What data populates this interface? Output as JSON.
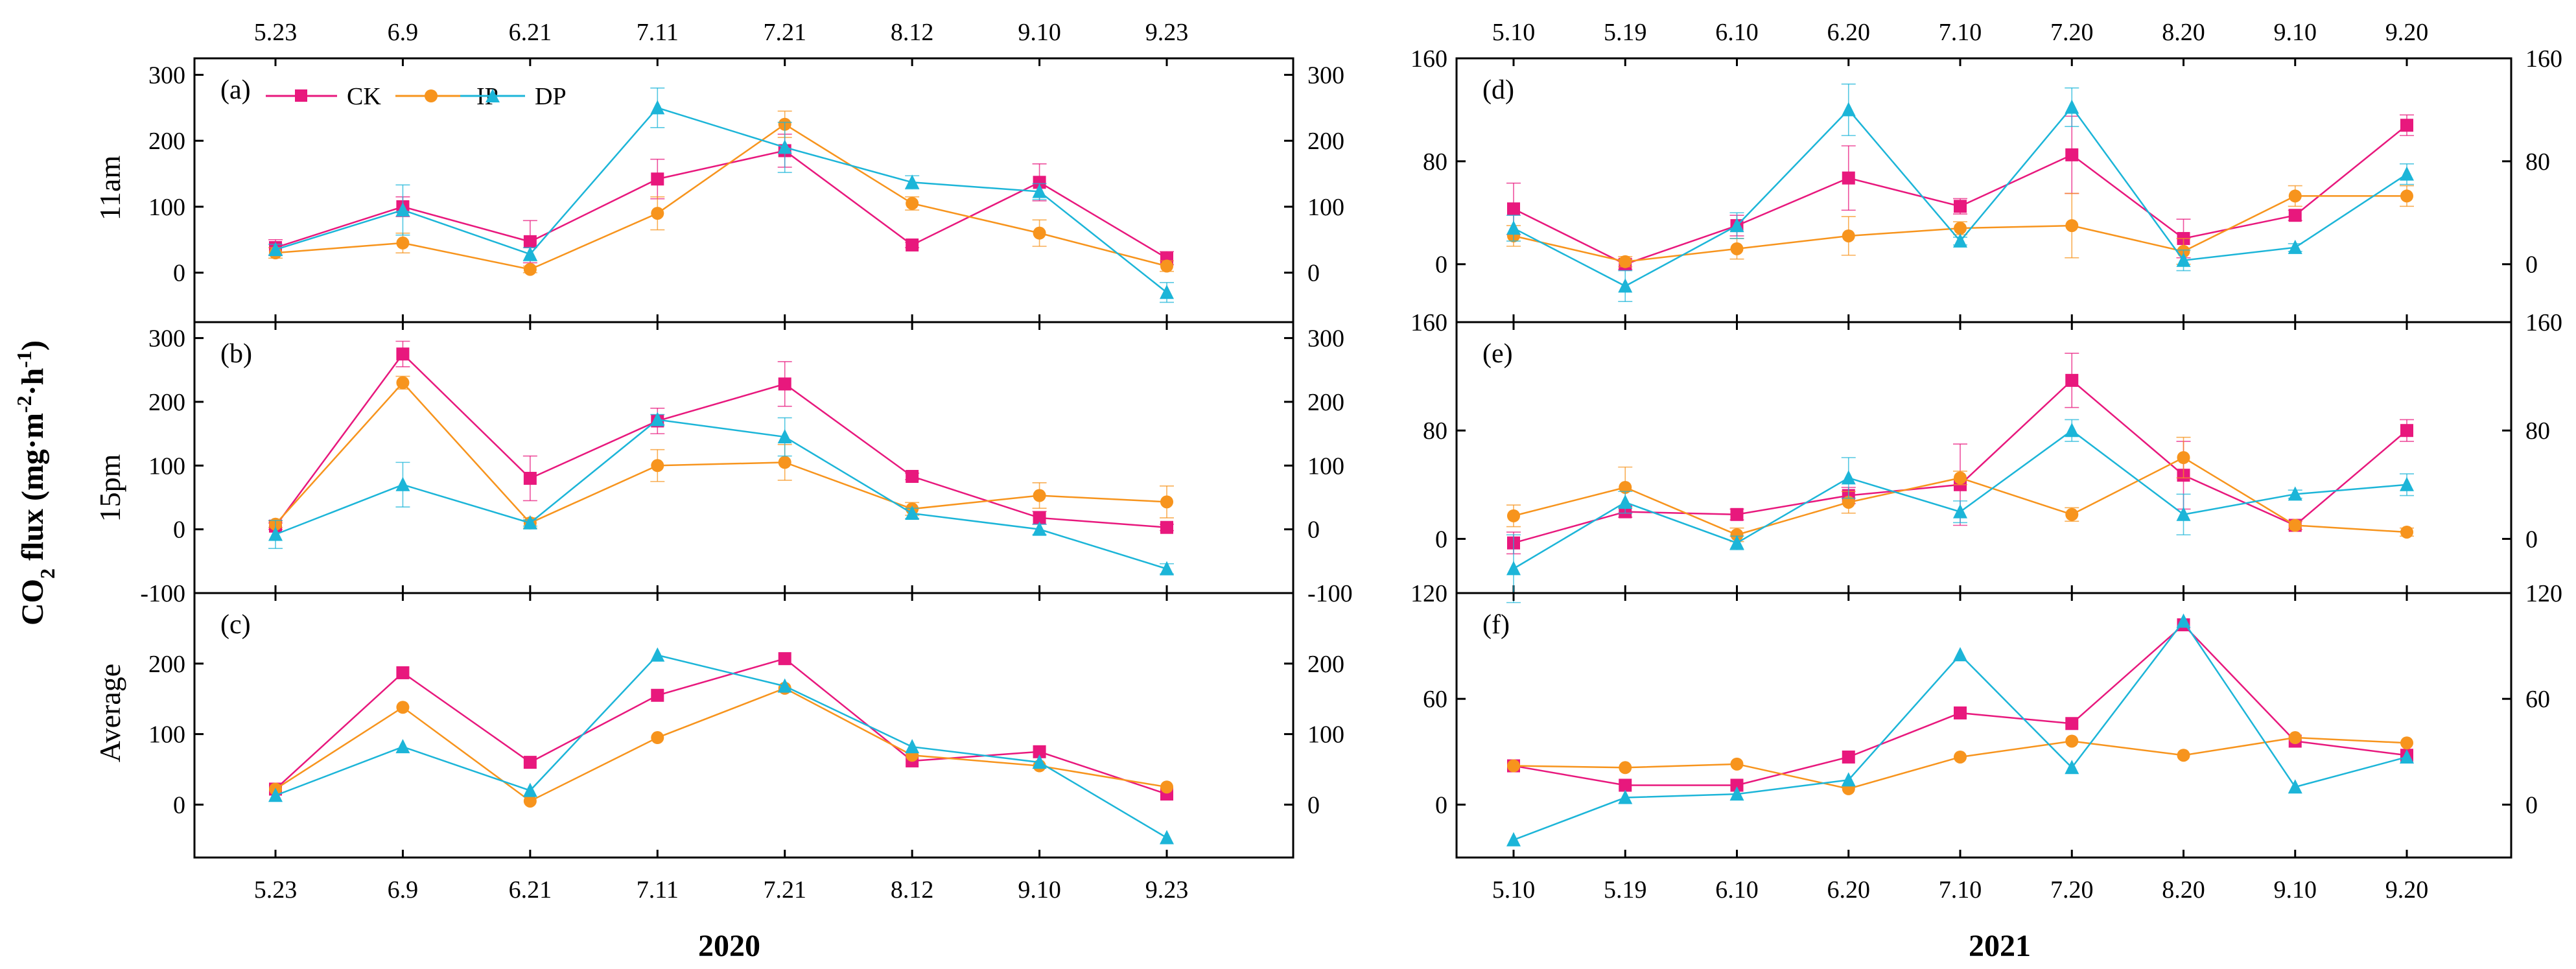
{
  "figure": {
    "ylabel_main": "CO",
    "ylabel_sub2": "2",
    "ylabel_flux": " flux (mg·m",
    "ylabel_sup1": "-2",
    "ylabel_mid": "·h",
    "ylabel_sup2": "-1",
    "ylabel_close": ")",
    "year_left": "2020",
    "year_right": "2021",
    "row_labels": [
      "11am",
      "15pm",
      "Average"
    ]
  },
  "colors": {
    "CK": "#e8187d",
    "IP": "#f7941d",
    "DP": "#1cb5d8"
  },
  "legend": [
    {
      "name": "CK",
      "marker": "square"
    },
    {
      "name": "IP",
      "marker": "circle"
    },
    {
      "name": "DP",
      "marker": "triangle"
    }
  ],
  "chart_data": [
    {
      "id": "a",
      "label": "(a)",
      "type": "line",
      "row": "11am",
      "categories": [
        "5.23",
        "6.9",
        "6.21",
        "7.11",
        "7.21",
        "8.12",
        "9.10",
        "9.23"
      ],
      "ylim": [
        -75,
        325
      ],
      "yticks": [
        0,
        100,
        200,
        300
      ],
      "series": [
        {
          "name": "CK",
          "values": [
            38,
            100,
            47,
            142,
            185,
            42,
            137,
            22
          ],
          "err": [
            12,
            15,
            32,
            30,
            25,
            4,
            28,
            10
          ]
        },
        {
          "name": "IP",
          "values": [
            30,
            45,
            5,
            90,
            225,
            105,
            60,
            10
          ],
          "err": [
            8,
            15,
            5,
            25,
            20,
            10,
            20,
            8
          ]
        },
        {
          "name": "DP",
          "values": [
            35,
            95,
            28,
            250,
            190,
            137,
            123,
            -30
          ],
          "err": [
            8,
            38,
            10,
            30,
            38,
            10,
            12,
            15
          ]
        }
      ]
    },
    {
      "id": "b",
      "label": "(b)",
      "type": "line",
      "row": "15pm",
      "categories": [
        "5.23",
        "6.9",
        "6.21",
        "7.11",
        "7.21",
        "8.12",
        "9.10",
        "9.23"
      ],
      "ylim": [
        -100,
        325
      ],
      "yticks": [
        -100,
        0,
        100,
        200,
        300
      ],
      "series": [
        {
          "name": "CK",
          "values": [
            5,
            275,
            80,
            170,
            228,
            83,
            18,
            3
          ],
          "err": [
            5,
            20,
            35,
            20,
            35,
            5,
            10,
            5
          ]
        },
        {
          "name": "IP",
          "values": [
            8,
            230,
            10,
            100,
            105,
            32,
            53,
            43
          ],
          "err": [
            5,
            10,
            8,
            25,
            28,
            10,
            20,
            25
          ]
        },
        {
          "name": "DP",
          "values": [
            -8,
            70,
            10,
            172,
            145,
            25,
            0,
            -62
          ],
          "err": [
            22,
            35,
            5,
            8,
            30,
            8,
            8,
            8
          ]
        }
      ]
    },
    {
      "id": "c",
      "label": "(c)",
      "type": "line",
      "row": "Average",
      "categories": [
        "5.23",
        "6.9",
        "6.21",
        "7.11",
        "7.21",
        "8.12",
        "9.10",
        "9.23"
      ],
      "ylim": [
        -75,
        300
      ],
      "yticks": [
        0,
        100,
        200
      ],
      "series": [
        {
          "name": "CK",
          "values": [
            22,
            187,
            60,
            155,
            207,
            62,
            75,
            15
          ]
        },
        {
          "name": "IP",
          "values": [
            22,
            138,
            5,
            95,
            165,
            70,
            55,
            25
          ]
        },
        {
          "name": "DP",
          "values": [
            13,
            82,
            20,
            212,
            168,
            82,
            60,
            -47
          ]
        }
      ]
    },
    {
      "id": "d",
      "label": "(d)",
      "type": "line",
      "row": "11am",
      "categories": [
        "5.10",
        "5.19",
        "6.10",
        "6.20",
        "7.10",
        "7.20",
        "8.20",
        "9.10",
        "9.20"
      ],
      "ylim": [
        -45,
        160
      ],
      "yticks": [
        0,
        80,
        160
      ],
      "series": [
        {
          "name": "CK",
          "values": [
            43,
            0,
            30,
            67,
            45,
            85,
            20,
            38,
            108
          ],
          "err": [
            20,
            4,
            8,
            25,
            6,
            30,
            15,
            4,
            8
          ]
        },
        {
          "name": "IP",
          "values": [
            22,
            2,
            12,
            22,
            28,
            30,
            10,
            53,
            53
          ],
          "err": [
            8,
            4,
            8,
            15,
            5,
            25,
            10,
            8,
            8
          ]
        },
        {
          "name": "DP",
          "values": [
            28,
            -17,
            30,
            120,
            18,
            122,
            3,
            13,
            70
          ],
          "err": [
            10,
            12,
            10,
            20,
            3,
            15,
            8,
            3,
            8
          ]
        }
      ]
    },
    {
      "id": "e",
      "label": "(e)",
      "type": "line",
      "row": "15pm",
      "categories": [
        "5.10",
        "5.19",
        "6.10",
        "6.20",
        "7.10",
        "7.20",
        "8.20",
        "9.10",
        "9.20"
      ],
      "ylim": [
        -40,
        160
      ],
      "yticks": [
        0,
        80,
        160
      ],
      "series": [
        {
          "name": "CK",
          "values": [
            -3,
            20,
            18,
            32,
            40,
            117,
            47,
            10,
            80
          ],
          "err": [
            8,
            4,
            4,
            6,
            30,
            20,
            25,
            3,
            8
          ]
        },
        {
          "name": "IP",
          "values": [
            17,
            38,
            3,
            27,
            45,
            18,
            60,
            10,
            5
          ],
          "err": [
            8,
            15,
            5,
            8,
            5,
            5,
            15,
            3,
            3
          ]
        },
        {
          "name": "DP",
          "values": [
            -22,
            27,
            -3,
            45,
            20,
            80,
            18,
            33,
            40
          ],
          "err": [
            25,
            8,
            5,
            15,
            8,
            8,
            15,
            3,
            8
          ]
        }
      ]
    },
    {
      "id": "f",
      "label": "(f)",
      "type": "line",
      "row": "Average",
      "categories": [
        "5.10",
        "5.19",
        "6.10",
        "6.20",
        "7.10",
        "7.20",
        "8.20",
        "9.10",
        "9.20"
      ],
      "ylim": [
        -30,
        120
      ],
      "yticks": [
        0,
        60,
        120
      ],
      "series": [
        {
          "name": "CK",
          "values": [
            22,
            11,
            11,
            27,
            52,
            46,
            102,
            36,
            28
          ]
        },
        {
          "name": "IP",
          "values": [
            22,
            21,
            23,
            9,
            27,
            36,
            28,
            38,
            35
          ]
        },
        {
          "name": "DP",
          "values": [
            -20,
            4,
            6,
            14,
            85,
            21,
            104,
            10,
            27
          ]
        }
      ]
    }
  ]
}
